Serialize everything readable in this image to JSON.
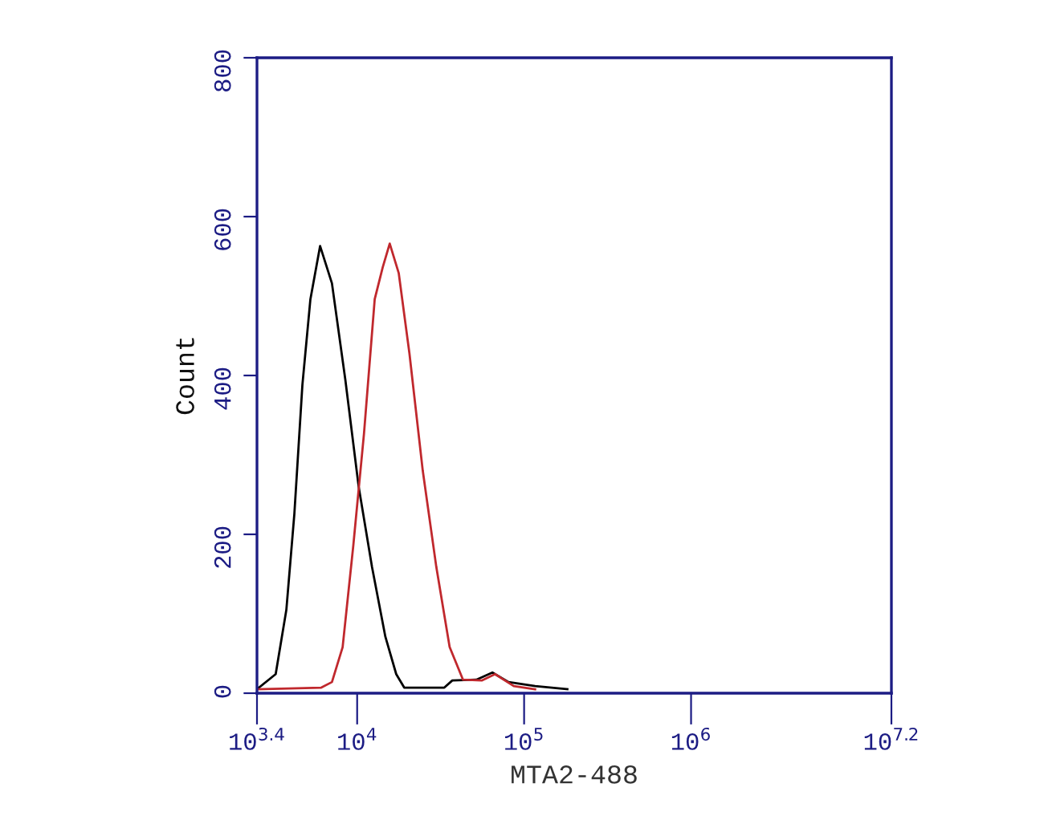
{
  "chart_data": {
    "type": "line",
    "xlabel": "MTA2-488",
    "ylabel": "Count",
    "log": "x",
    "xlim": [
      2512,
      15850000
    ],
    "xticks": [
      {
        "value": 2512,
        "label": "10$^{3.4}$"
      },
      {
        "value": 10000,
        "label": "10$^{4}$"
      },
      {
        "value": 100000,
        "label": "10$^{5}$"
      },
      {
        "value": 1000000,
        "label": "10$^{6}$"
      },
      {
        "value": 15850000,
        "label": "10$^{7.2}$"
      }
    ],
    "ylim": [
      0,
      800
    ],
    "yticks": [
      0,
      200,
      400,
      600,
      800
    ],
    "grid": false,
    "legend": false,
    "marker": "none",
    "line_style": "solid",
    "series": [
      {
        "color": "#000000",
        "x": [
          2512,
          3251,
          3767,
          4207,
          4699,
          5248,
          5998,
          7063,
          8492,
          10210,
          12270,
          14760,
          17140,
          19140,
          33270,
          37150,
          51760,
          64570,
          80720,
          116400,
          181600
        ],
        "values": [
          5,
          24,
          105,
          226,
          388,
          496,
          563,
          516,
          395,
          260,
          159,
          71,
          24,
          7,
          7,
          16,
          17,
          26,
          14,
          9,
          5
        ]
      },
      {
        "color": "#c0282d",
        "x": [
          2512,
          6095,
          7063,
          8185,
          9484,
          10990,
          12740,
          14220,
          15670,
          17740,
          20560,
          24720,
          29790,
          35810,
          43050,
          55720,
          66990,
          86700,
          116400
        ],
        "values": [
          5,
          7,
          14,
          58,
          186,
          327,
          496,
          536,
          566,
          529,
          428,
          280,
          159,
          58,
          17,
          16,
          24,
          9,
          5
        ]
      }
    ]
  }
}
